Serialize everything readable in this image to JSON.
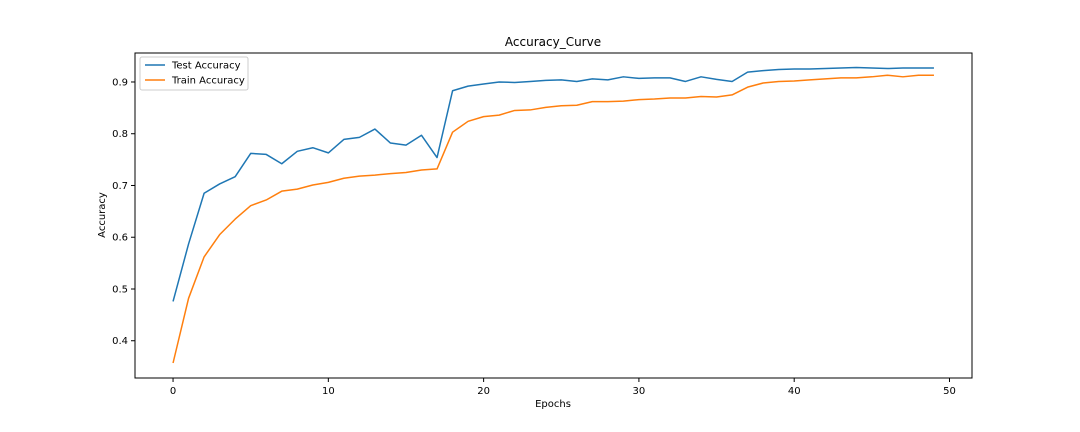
{
  "chart_data": {
    "type": "line",
    "title": "Accuracy_Curve",
    "xlabel": "Epochs",
    "ylabel": "Accuracy",
    "xlim": [
      -2.45,
      51.45
    ],
    "ylim": [
      0.328,
      0.956
    ],
    "xticks": [
      0,
      10,
      20,
      30,
      40,
      50
    ],
    "yticks": [
      0.4,
      0.5,
      0.6,
      0.7,
      0.8,
      0.9
    ],
    "grid": false,
    "legend_position": "upper-left",
    "x": [
      0,
      1,
      2,
      3,
      4,
      5,
      6,
      7,
      8,
      9,
      10,
      11,
      12,
      13,
      14,
      15,
      16,
      17,
      18,
      19,
      20,
      21,
      22,
      23,
      24,
      25,
      26,
      27,
      28,
      29,
      30,
      31,
      32,
      33,
      34,
      35,
      36,
      37,
      38,
      39,
      40,
      41,
      42,
      43,
      44,
      45,
      46,
      47,
      48,
      49
    ],
    "series": [
      {
        "name": "Test Accuracy",
        "color": "#1f77b4",
        "values": [
          0.476,
          0.587,
          0.685,
          0.703,
          0.717,
          0.762,
          0.76,
          0.742,
          0.766,
          0.773,
          0.763,
          0.789,
          0.793,
          0.809,
          0.782,
          0.778,
          0.797,
          0.754,
          0.883,
          0.892,
          0.896,
          0.9,
          0.899,
          0.901,
          0.903,
          0.904,
          0.901,
          0.906,
          0.904,
          0.91,
          0.907,
          0.908,
          0.908,
          0.901,
          0.91,
          0.905,
          0.901,
          0.919,
          0.922,
          0.924,
          0.925,
          0.925,
          0.926,
          0.927,
          0.928,
          0.927,
          0.926,
          0.927,
          0.927,
          0.927
        ]
      },
      {
        "name": "Train Accuracy",
        "color": "#ff7f0e",
        "values": [
          0.357,
          0.482,
          0.562,
          0.605,
          0.635,
          0.661,
          0.672,
          0.689,
          0.693,
          0.701,
          0.706,
          0.714,
          0.718,
          0.72,
          0.723,
          0.725,
          0.73,
          0.732,
          0.803,
          0.824,
          0.833,
          0.836,
          0.845,
          0.846,
          0.851,
          0.854,
          0.855,
          0.862,
          0.862,
          0.863,
          0.866,
          0.867,
          0.869,
          0.869,
          0.872,
          0.871,
          0.875,
          0.89,
          0.898,
          0.901,
          0.902,
          0.904,
          0.906,
          0.908,
          0.908,
          0.91,
          0.913,
          0.91,
          0.913,
          0.913
        ]
      }
    ]
  }
}
